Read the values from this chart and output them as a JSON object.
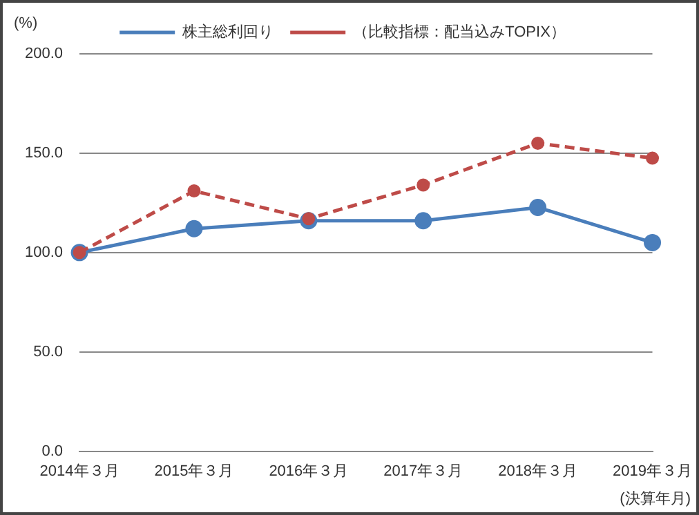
{
  "chart_data": {
    "type": "line",
    "ylabel": "(%)",
    "xlabel": "(決算年月)",
    "categories": [
      "2014年３月",
      "2015年３月",
      "2016年３月",
      "2017年３月",
      "2018年３月",
      "2019年３月"
    ],
    "series": [
      {
        "name": "株主総利回り",
        "color": "#4a7ebb",
        "values": [
          100,
          112,
          116,
          116,
          122.7,
          105
        ],
        "line_style": "solid"
      },
      {
        "name": "（比較指標：配当込みTOPIX）",
        "color": "#be4b48",
        "values": [
          100,
          131,
          117,
          134,
          155,
          147.5
        ],
        "line_style": "dashed"
      }
    ],
    "ylim": [
      0,
      200
    ],
    "yticks": [
      {
        "value": 0,
        "label": "0.0"
      },
      {
        "value": 50,
        "label": "50.0"
      },
      {
        "value": 100,
        "label": "100.0"
      },
      {
        "value": 150,
        "label": "150.0"
      },
      {
        "value": 200,
        "label": "200.0"
      }
    ],
    "grid": "y",
    "legend": "top",
    "marker": "circle"
  }
}
